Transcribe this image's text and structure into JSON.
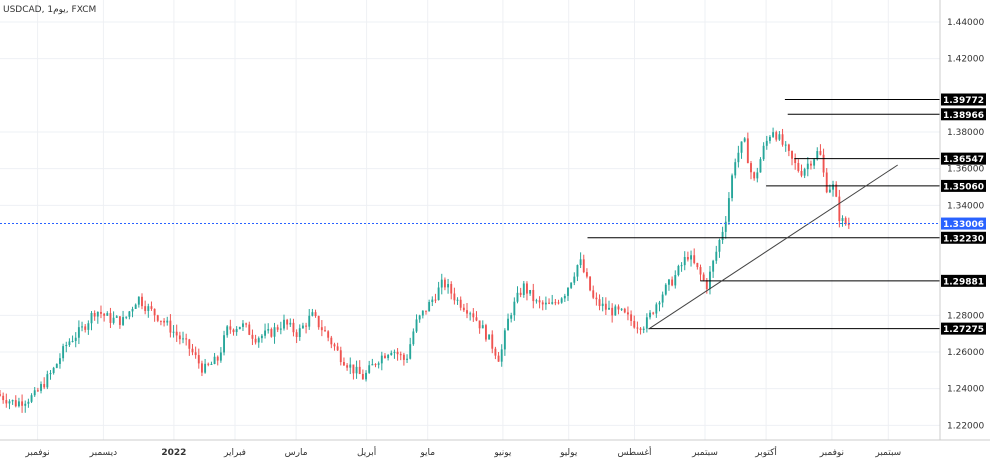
{
  "header": {
    "title": "USDCAD, 1يوم, FXCM"
  },
  "chart_data": {
    "type": "candlestick",
    "symbol": "USDCAD",
    "timeframe": "1يوم",
    "source": "FXCM",
    "ylim": [
      1.212,
      1.452
    ],
    "y_ticks": [
      {
        "value": 1.22,
        "label": "1.22000"
      },
      {
        "value": 1.24,
        "label": "1.24000"
      },
      {
        "value": 1.26,
        "label": "1.26000"
      },
      {
        "value": 1.28,
        "label": "1.28000"
      },
      {
        "value": 1.34,
        "label": "1.34000"
      },
      {
        "value": 1.36,
        "label": "1.36000"
      },
      {
        "value": 1.38,
        "label": "1.38000"
      },
      {
        "value": 1.42,
        "label": "1.42000"
      },
      {
        "value": 1.44,
        "label": "1.44000"
      }
    ],
    "x_ticks": [
      {
        "label": "نوفمبر",
        "t": 0.04
      },
      {
        "label": "ديسمبر",
        "t": 0.11
      },
      {
        "label": "2022",
        "t": 0.185
      },
      {
        "label": "فبراير",
        "t": 0.25
      },
      {
        "label": "مارس",
        "t": 0.315
      },
      {
        "label": "أبريل",
        "t": 0.39
      },
      {
        "label": "مايو",
        "t": 0.455
      },
      {
        "label": "يونيو",
        "t": 0.535
      },
      {
        "label": "يوليو",
        "t": 0.605
      },
      {
        "label": "أغسطس",
        "t": 0.675
      },
      {
        "label": "سبتمبر",
        "t": 0.75
      },
      {
        "label": "أكتوبر",
        "t": 0.815
      },
      {
        "label": "نوفمبر",
        "t": 0.885
      },
      {
        "label": "سبتمبر",
        "t": 0.945
      }
    ],
    "current_price": {
      "value": 1.33006,
      "label": "1.33006",
      "color": "#2962ff"
    },
    "levels": [
      {
        "value": 1.39772,
        "label": "1.39772",
        "t_start": 0.835
      },
      {
        "value": 1.38966,
        "label": "1.38966",
        "t_start": 0.838
      },
      {
        "value": 1.36547,
        "label": "1.36547",
        "t_start": 0.845
      },
      {
        "value": 1.3506,
        "label": "1.35060",
        "t_start": 0.815
      },
      {
        "value": 1.3223,
        "label": "1.32230",
        "t_start": 0.625
      },
      {
        "value": 1.29881,
        "label": "1.29881",
        "t_start": 0.745
      },
      {
        "value": 1.27275,
        "label": "1.27275",
        "t_start": 0.69
      }
    ],
    "trendline": {
      "t1": 0.69,
      "v1": 1.2725,
      "t2": 0.955,
      "v2": 1.362
    },
    "colors": {
      "up": "#26a69a",
      "down": "#ef5350",
      "level": "#000000",
      "trend": "#444444"
    },
    "anchors": [
      [
        0.0,
        1.237
      ],
      [
        0.02,
        1.232
      ],
      [
        0.04,
        1.236
      ],
      [
        0.06,
        1.25
      ],
      [
        0.075,
        1.265
      ],
      [
        0.09,
        1.272
      ],
      [
        0.105,
        1.283
      ],
      [
        0.12,
        1.278
      ],
      [
        0.135,
        1.277
      ],
      [
        0.15,
        1.29
      ],
      [
        0.16,
        1.284
      ],
      [
        0.175,
        1.278
      ],
      [
        0.19,
        1.27
      ],
      [
        0.205,
        1.262
      ],
      [
        0.22,
        1.25
      ],
      [
        0.235,
        1.256
      ],
      [
        0.245,
        1.272
      ],
      [
        0.26,
        1.275
      ],
      [
        0.275,
        1.268
      ],
      [
        0.29,
        1.27
      ],
      [
        0.305,
        1.276
      ],
      [
        0.32,
        1.27
      ],
      [
        0.335,
        1.28
      ],
      [
        0.35,
        1.27
      ],
      [
        0.365,
        1.258
      ],
      [
        0.38,
        1.25
      ],
      [
        0.39,
        1.246
      ],
      [
        0.405,
        1.256
      ],
      [
        0.42,
        1.262
      ],
      [
        0.435,
        1.255
      ],
      [
        0.445,
        1.275
      ],
      [
        0.46,
        1.286
      ],
      [
        0.475,
        1.298
      ],
      [
        0.49,
        1.288
      ],
      [
        0.505,
        1.282
      ],
      [
        0.52,
        1.27
      ],
      [
        0.535,
        1.256
      ],
      [
        0.545,
        1.28
      ],
      [
        0.56,
        1.296
      ],
      [
        0.575,
        1.286
      ],
      [
        0.59,
        1.285
      ],
      [
        0.605,
        1.293
      ],
      [
        0.62,
        1.31
      ],
      [
        0.635,
        1.288
      ],
      [
        0.65,
        1.283
      ],
      [
        0.665,
        1.281
      ],
      [
        0.68,
        1.275
      ],
      [
        0.69,
        1.275
      ],
      [
        0.705,
        1.29
      ],
      [
        0.72,
        1.3
      ],
      [
        0.735,
        1.313
      ],
      [
        0.745,
        1.305
      ],
      [
        0.755,
        1.296
      ],
      [
        0.765,
        1.314
      ],
      [
        0.775,
        1.332
      ],
      [
        0.785,
        1.365
      ],
      [
        0.795,
        1.375
      ],
      [
        0.805,
        1.352
      ],
      [
        0.815,
        1.37
      ],
      [
        0.825,
        1.382
      ],
      [
        0.835,
        1.374
      ],
      [
        0.845,
        1.365
      ],
      [
        0.855,
        1.358
      ],
      [
        0.865,
        1.364
      ],
      [
        0.875,
        1.37
      ],
      [
        0.882,
        1.35
      ],
      [
        0.89,
        1.35
      ],
      [
        0.897,
        1.332
      ],
      [
        0.903,
        1.33
      ]
    ]
  }
}
